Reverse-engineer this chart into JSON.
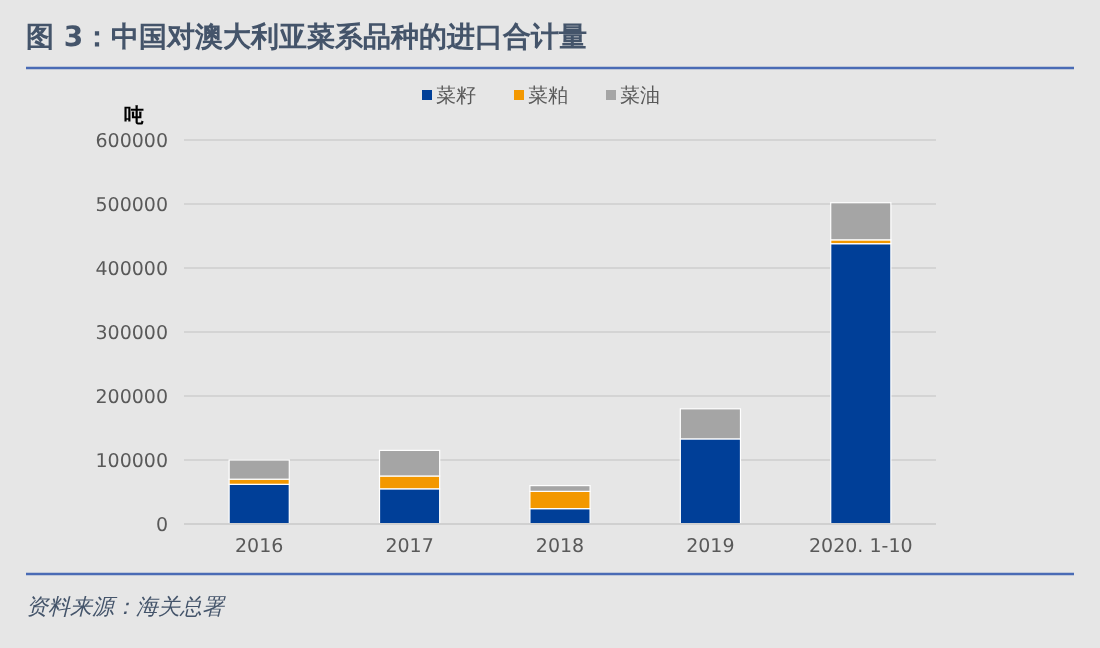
{
  "chart_data": {
    "type": "bar",
    "title": "图 3：中国对澳大利亚菜系品种的进口合计量",
    "ylabel": "吨",
    "categories": [
      "2016",
      "2017",
      "2018",
      "2019",
      "2020. 1-10"
    ],
    "stacked": true,
    "series": [
      {
        "name": "菜籽",
        "color": "#003f98",
        "values": [
          62000,
          55000,
          24000,
          133000,
          438000
        ]
      },
      {
        "name": "菜粕",
        "color": "#f39800",
        "values": [
          8000,
          20000,
          27000,
          0,
          6000
        ]
      },
      {
        "name": "菜油",
        "color": "#a5a5a5",
        "values": [
          30000,
          40000,
          9000,
          47000,
          58000
        ]
      }
    ],
    "ylim": [
      0,
      600000
    ],
    "yticks": [
      0,
      100000,
      200000,
      300000,
      400000,
      500000,
      600000
    ],
    "grid": "y",
    "legend": "top",
    "annotations": [
      "资料来源：海关总署"
    ]
  }
}
